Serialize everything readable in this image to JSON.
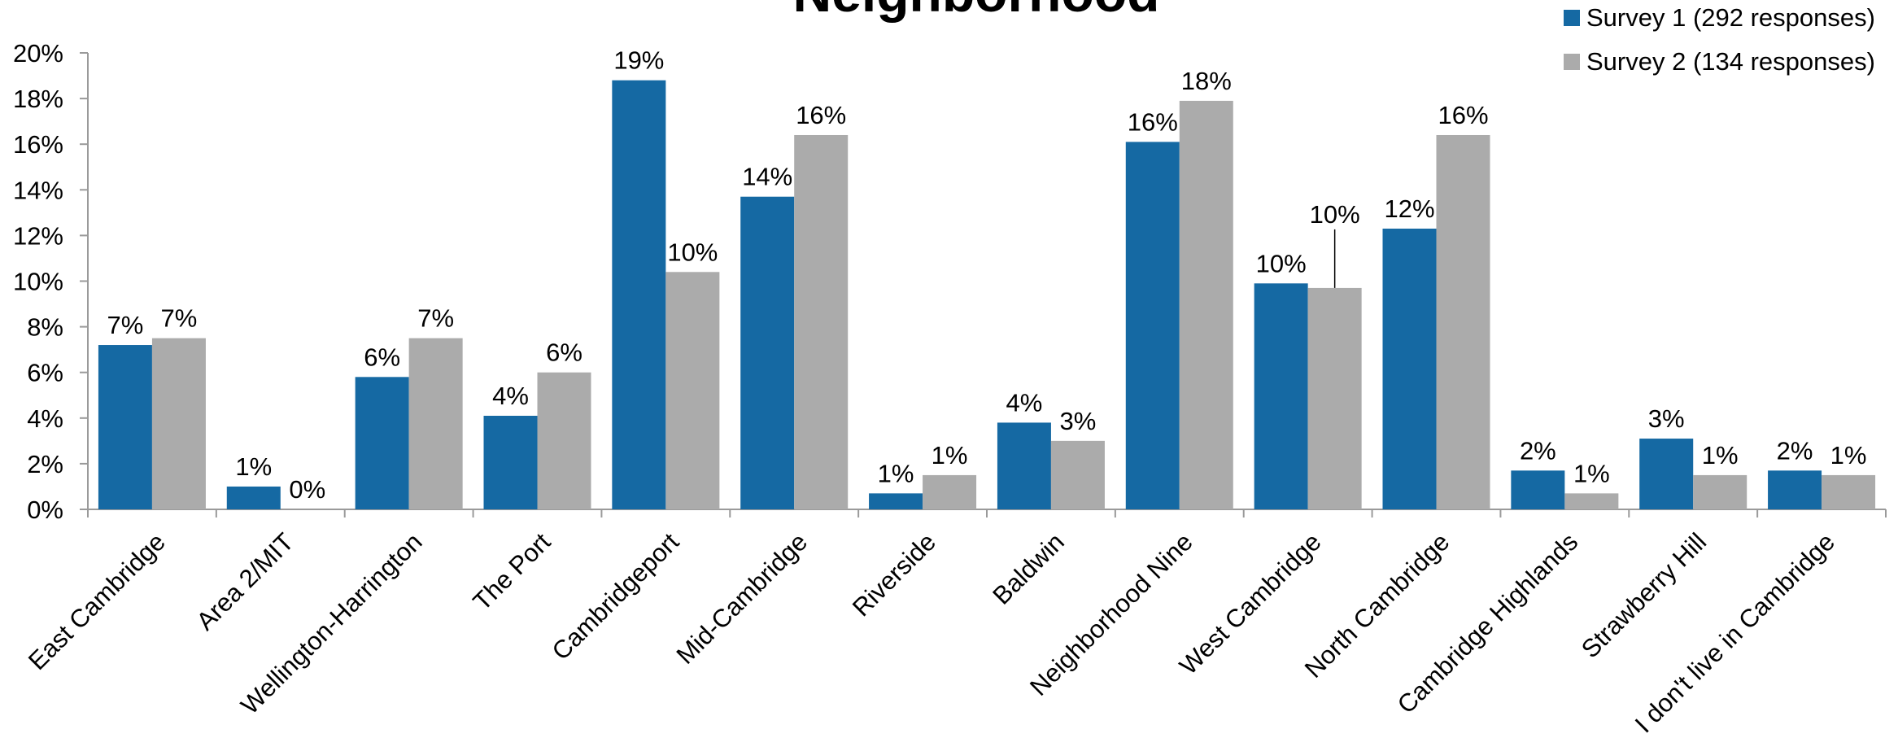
{
  "chart_data": {
    "type": "bar",
    "title": "Neighborhood",
    "xlabel": "",
    "ylabel": "",
    "ylim": [
      0,
      20
    ],
    "yticks": [
      "0%",
      "2%",
      "4%",
      "6%",
      "8%",
      "10%",
      "12%",
      "14%",
      "16%",
      "18%",
      "20%"
    ],
    "ytick_values": [
      0,
      2,
      4,
      6,
      8,
      10,
      12,
      14,
      16,
      18,
      20
    ],
    "grid": false,
    "legend_position": "top-right",
    "categories": [
      "East Cambridge",
      "Area 2/MIT",
      "Wellington-Harrington",
      "The Port",
      "Cambridgeport",
      "Mid-Cambridge",
      "Riverside",
      "Baldwin",
      "Neighborhood Nine",
      "West Cambridge",
      "North Cambridge",
      "Cambridge Highlands",
      "Strawberry Hill",
      "I don't live in Cambridge"
    ],
    "series": [
      {
        "name": "Survey 1 (292 responses)",
        "color": "#1569A3",
        "values": [
          7.2,
          1.0,
          5.8,
          4.1,
          18.8,
          13.7,
          0.7,
          3.8,
          16.1,
          9.9,
          12.3,
          1.7,
          3.1,
          1.7
        ],
        "labels": [
          "7%",
          "1%",
          "6%",
          "4%",
          "19%",
          "14%",
          "1%",
          "4%",
          "16%",
          "10%",
          "12%",
          "2%",
          "3%",
          "2%"
        ]
      },
      {
        "name": "Survey 2 (134 responses)",
        "color": "#ABABAB",
        "values": [
          7.5,
          0.0,
          7.5,
          6.0,
          10.4,
          16.4,
          1.5,
          3.0,
          17.9,
          9.7,
          16.4,
          0.7,
          1.5,
          1.5
        ],
        "labels": [
          "7%",
          "0%",
          "7%",
          "6%",
          "10%",
          "16%",
          "1%",
          "3%",
          "18%",
          "10%",
          "16%",
          "1%",
          "1%",
          "1%"
        ]
      }
    ]
  }
}
